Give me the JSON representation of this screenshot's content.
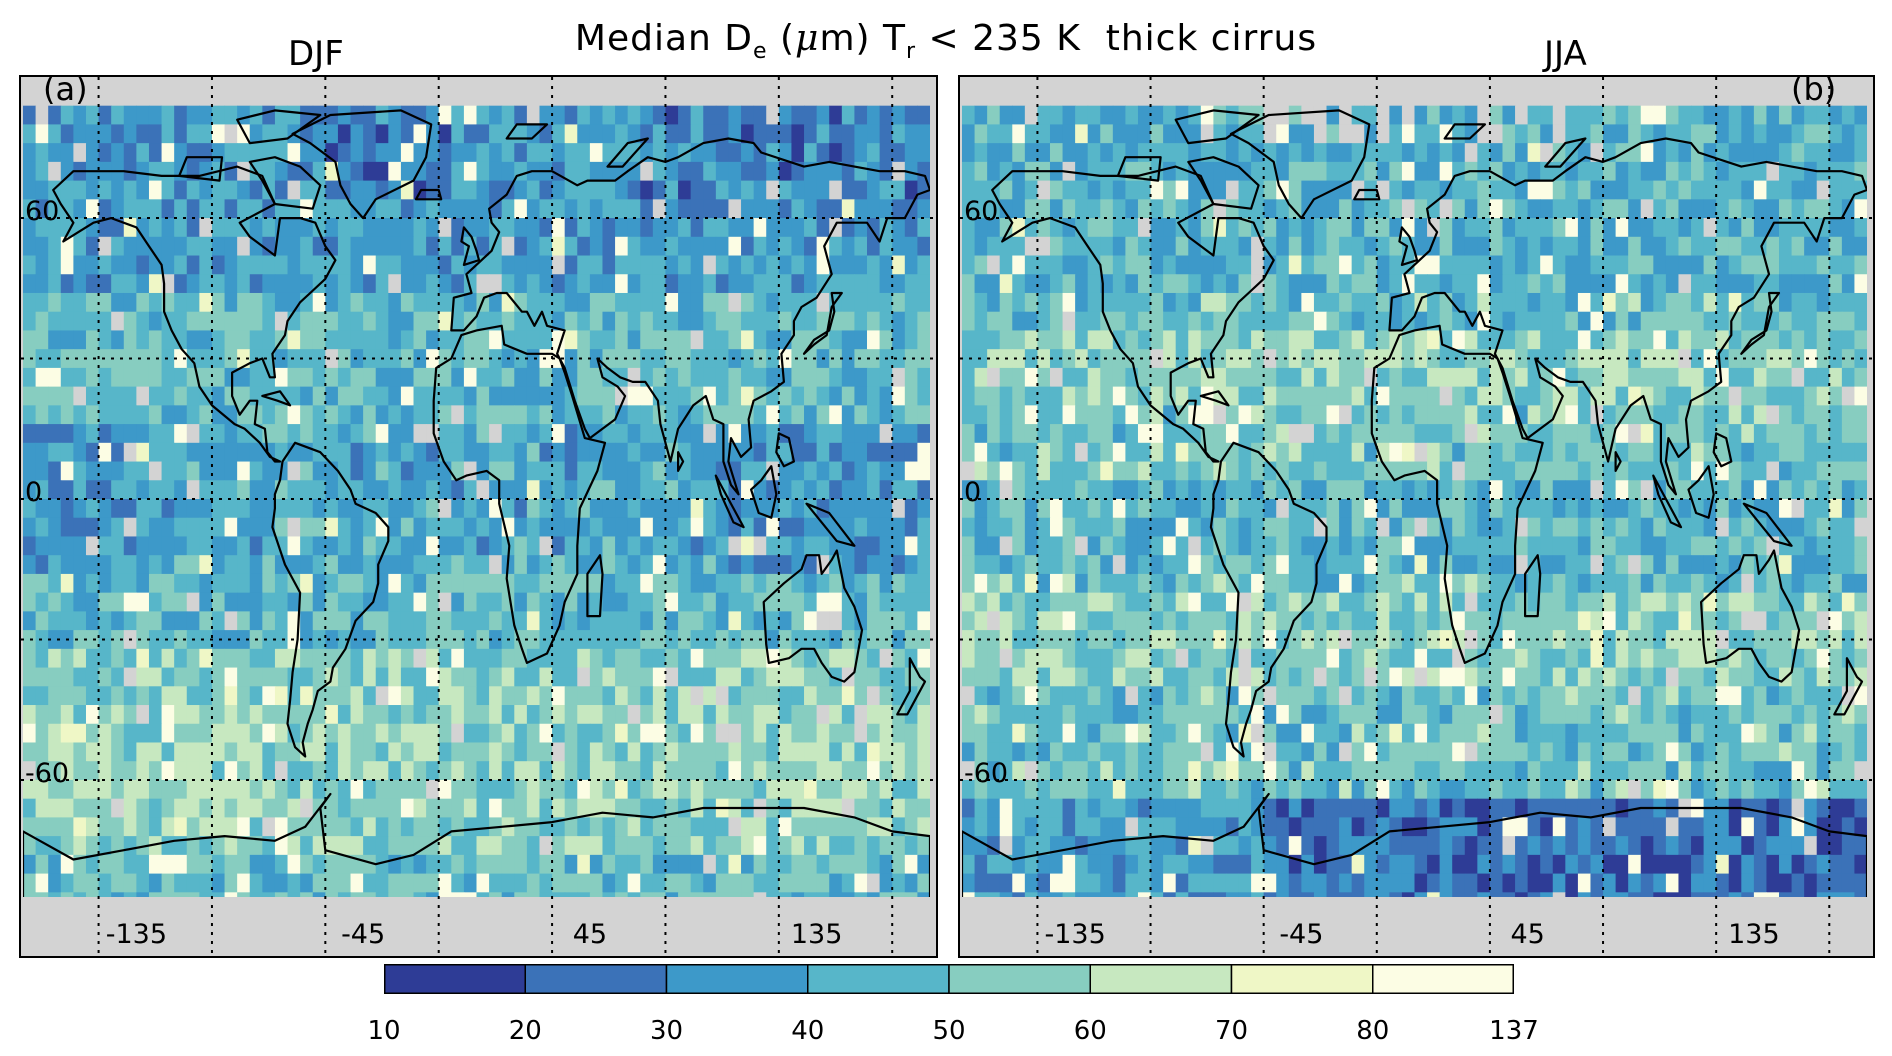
{
  "figure": {
    "title": {
      "prefix": "Median D",
      "sub1": "e",
      "mu": "μ",
      "mid": "m) T",
      "sub2": "r",
      "suffix": " < 235 K  thick cirrus"
    }
  },
  "panels": [
    {
      "season": "DJF",
      "label": "(a)"
    },
    {
      "season": "JJA",
      "label": "(b)"
    }
  ],
  "chart_data": {
    "type": "heatmap",
    "title": "Median De (μm) Tr < 235 K thick cirrus",
    "x_ticks": [
      "-135",
      "-45",
      "45",
      "135"
    ],
    "y_ticks": [
      "60",
      "0",
      "-60"
    ],
    "colorbar": {
      "ticks": [
        "10",
        "20",
        "30",
        "40",
        "50",
        "60",
        "70",
        "80",
        "137"
      ],
      "colors": [
        "#2e3c96",
        "#3b72b8",
        "#3d99c9",
        "#57b6c9",
        "#87cdc0",
        "#c7e8c0",
        "#eff7c6",
        "#fcfde4"
      ]
    },
    "missing_color": "#d3d3d3"
  }
}
